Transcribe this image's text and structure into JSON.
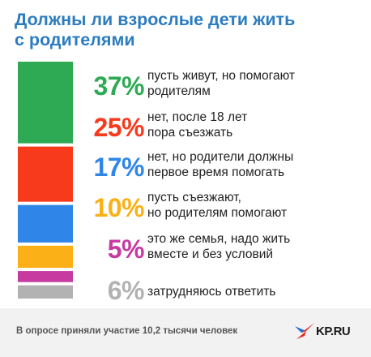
{
  "title": {
    "line1": "Должны ли взрослые дети жить",
    "line2": "с родителями"
  },
  "chart_data": {
    "type": "bar",
    "orientation": "stacked-vertical",
    "unit": "%",
    "items": [
      {
        "value": 37,
        "label": "37%",
        "text_lines": [
          "пусть живут, но помогают",
          "родителям"
        ],
        "color": "#2eaa54"
      },
      {
        "value": 25,
        "label": "25%",
        "text_lines": [
          "нет, после 18 лет",
          "пора съезжать"
        ],
        "color": "#f83a1c"
      },
      {
        "value": 17,
        "label": "17%",
        "text_lines": [
          "нет, но родители должны",
          "первое время помогать"
        ],
        "color": "#2f86e8"
      },
      {
        "value": 10,
        "label": "10%",
        "text_lines": [
          "пусть съезжают,",
          "но родителям помогают"
        ],
        "color": "#fcb017"
      },
      {
        "value": 5,
        "label": "5%",
        "text_lines": [
          "это же семья, надо жить",
          "вместе и без условий"
        ],
        "color": "#c73aa0"
      },
      {
        "value": 6,
        "label": "6%",
        "text_lines": [
          "затрудняюсь ответить"
        ],
        "color": "#b2b2b2"
      }
    ]
  },
  "footer": {
    "note": "В опросе приняли участие 10,2 тысячи человек",
    "logo_text": "KP.RU"
  }
}
